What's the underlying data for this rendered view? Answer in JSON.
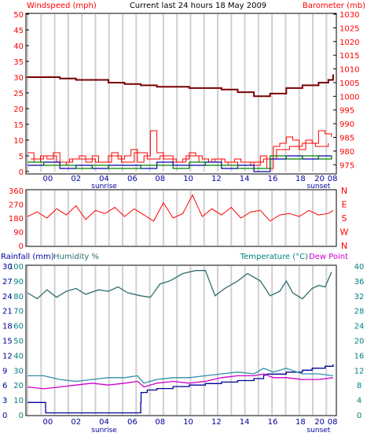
{
  "header": {
    "left_label": "Windspeed (mph)",
    "center_title": "Current last 24 hours 18 May 2009",
    "right_label": "Barometer (mb)"
  },
  "colors": {
    "background": "#ffffff",
    "plot_background": "#ffffff",
    "grid_vertical": "#d0d0d0",
    "axis": "#000000",
    "wind": "#ff0000",
    "wind_avg": "#0000aa",
    "wind_green": "#008000",
    "barometer": "#7a0000",
    "direction": "#ff0000",
    "rain": "#000099",
    "humidity": "#2f6f6f",
    "temperature": "#2f8fa8",
    "dewpoint": "#cc00cc",
    "label_red": "#ff0000",
    "label_blue": "#000099",
    "label_teal": "#008080"
  },
  "chart_data": [
    {
      "type": "line",
      "title": "Current last 24 hours 18 May 2009",
      "ylabel": "Windspeed (mph)",
      "y2label": "Barometer (mb)",
      "xlim": [
        23,
        32.5
      ],
      "ylim": [
        0,
        50
      ],
      "y2lim": [
        972.5,
        1030
      ],
      "grid": "vertical",
      "yticks": [
        0,
        5,
        10,
        15,
        20,
        25,
        30,
        35,
        40,
        45,
        50
      ],
      "y2ticks": [
        975,
        980,
        985,
        990,
        995,
        1000,
        1005,
        1010,
        1015,
        1020,
        1025,
        1030
      ],
      "series": [
        {
          "axis": "left",
          "style": "gust",
          "x": [
            23.0,
            23.2,
            23.4,
            23.6,
            23.8,
            24.0,
            24.2,
            24.4,
            24.6,
            24.8,
            25.0,
            25.2,
            25.4,
            25.6,
            25.8,
            26.0,
            26.2,
            26.4,
            26.6,
            26.8,
            27.0,
            27.2,
            27.4,
            27.6,
            27.8,
            28.0,
            28.2,
            28.4,
            28.6,
            28.8,
            29.0,
            29.2,
            29.4,
            29.6,
            29.8,
            30.0,
            30.2,
            30.4,
            30.6,
            30.8,
            31.0,
            31.2,
            31.4,
            31.6,
            31.8,
            32.0,
            32.2,
            32.4
          ],
          "y": [
            6,
            3,
            5,
            4,
            6,
            2,
            3,
            4,
            5,
            3,
            5,
            3,
            3,
            6,
            4,
            5,
            7,
            3,
            5,
            13,
            6,
            4,
            4,
            3,
            4,
            6,
            5,
            4,
            3,
            4,
            2,
            3,
            4,
            3,
            3,
            2,
            5,
            1,
            8,
            9,
            11,
            10,
            7,
            10,
            9,
            13,
            12,
            11
          ]
        },
        {
          "axis": "left",
          "style": "gust",
          "x": [
            23.1,
            23.5,
            23.9,
            24.3,
            24.7,
            25.1,
            25.5,
            25.9,
            26.3,
            26.7,
            27.1,
            27.5,
            27.9,
            28.3,
            28.7,
            29.1,
            29.5,
            29.9,
            30.3,
            30.7,
            31.1,
            31.5,
            31.9,
            32.3
          ],
          "y": [
            4,
            5,
            3,
            4,
            4,
            3,
            5,
            3,
            6,
            4,
            5,
            3,
            5,
            3,
            4,
            3,
            2,
            3,
            4,
            7,
            8,
            9,
            8,
            9
          ]
        },
        {
          "axis": "left",
          "style": "average",
          "x": [
            23.0,
            23.5,
            24.0,
            24.5,
            25.0,
            25.5,
            26.0,
            26.5,
            27.0,
            27.5,
            28.0,
            28.5,
            29.0,
            29.5,
            30.0,
            30.5,
            31.0,
            31.5,
            32.0,
            32.4
          ],
          "y": [
            2,
            3,
            1,
            2,
            1,
            2,
            2,
            1,
            3,
            2,
            2,
            3,
            1,
            2,
            0,
            4,
            5,
            4,
            5,
            4
          ]
        },
        {
          "axis": "left",
          "style": "average",
          "x": [
            23.0,
            23.5,
            24.0,
            24.5,
            25.0,
            25.5,
            26.0,
            26.5,
            27.0,
            27.5,
            28.0,
            28.5,
            29.0,
            29.5,
            30.0,
            30.5,
            31.0,
            31.5,
            32.0,
            32.4
          ],
          "y": [
            3,
            2,
            2,
            1,
            2,
            1,
            1,
            2,
            2,
            1,
            3,
            2,
            2,
            1,
            1,
            5,
            4,
            5,
            4,
            5
          ]
        },
        {
          "axis": "right",
          "style": "pressure",
          "x": [
            23.0,
            23.8,
            24.0,
            24.5,
            25.0,
            25.5,
            26.0,
            26.5,
            27.0,
            27.5,
            28.0,
            28.5,
            29.0,
            29.5,
            30.0,
            30.25,
            30.5,
            31.0,
            31.5,
            32.0,
            32.3,
            32.45
          ],
          "y": [
            1007,
            1007,
            1006.5,
            1006,
            1006,
            1005,
            1004.5,
            1004,
            1003.5,
            1003.5,
            1003,
            1003,
            1002.5,
            1001.5,
            1000,
            1000,
            1001,
            1003,
            1004,
            1005,
            1006,
            1008
          ]
        }
      ]
    },
    {
      "type": "line",
      "ylabel": "Wind direction",
      "xlim": [
        23,
        32.5
      ],
      "ylim": [
        0,
        360
      ],
      "yticks": [
        0,
        90,
        180,
        270,
        360
      ],
      "y2tick_labels": [
        "N",
        "W",
        "S",
        "E",
        "N"
      ],
      "series": [
        {
          "axis": "left",
          "x": [
            23.0,
            23.3,
            23.6,
            23.9,
            24.2,
            24.5,
            24.8,
            25.1,
            25.4,
            25.7,
            26.0,
            26.3,
            26.6,
            26.9,
            27.2,
            27.5,
            27.8,
            28.1,
            28.4,
            28.7,
            29.0,
            29.3,
            29.6,
            29.9,
            30.2,
            30.5,
            30.8,
            31.1,
            31.4,
            31.7,
            32.0,
            32.3,
            32.45
          ],
          "y": [
            190,
            220,
            180,
            240,
            200,
            260,
            170,
            230,
            210,
            250,
            190,
            240,
            200,
            160,
            280,
            180,
            210,
            330,
            190,
            240,
            200,
            250,
            180,
            220,
            230,
            160,
            200,
            210,
            190,
            230,
            200,
            210,
            230
          ]
        }
      ]
    },
    {
      "type": "line",
      "y1label": "Rainfall (mm)",
      "y2label": "Humidity %",
      "y3label": "Temperature (°C)",
      "y4label": "Dew Point",
      "xlim": [
        23,
        32.5
      ],
      "ylim": [
        0,
        100
      ],
      "y2lim": [
        0,
        40
      ],
      "yticks": [
        0,
        10,
        20,
        30,
        40,
        50,
        60,
        70,
        80,
        90,
        100
      ],
      "y2ticks": [
        0,
        4,
        8,
        12,
        16,
        20,
        24,
        28,
        32,
        36,
        40
      ],
      "rain_ticks": [
        0,
        3,
        6,
        9,
        12,
        15,
        18,
        21,
        24,
        27,
        30
      ],
      "series": [
        {
          "axis": "humidity",
          "x": [
            23.0,
            23.3,
            23.6,
            23.9,
            24.2,
            24.5,
            24.8,
            25.2,
            25.5,
            25.8,
            26.1,
            26.5,
            26.8,
            27.1,
            27.4,
            27.8,
            28.2,
            28.5,
            28.8,
            29.1,
            29.5,
            29.8,
            30.2,
            30.5,
            30.8,
            31.0,
            31.2,
            31.5,
            31.8,
            32.0,
            32.2,
            32.4
          ],
          "y": [
            82,
            78,
            84,
            79,
            83,
            85,
            81,
            84,
            83,
            86,
            82,
            80,
            79,
            88,
            90,
            95,
            97,
            97,
            80,
            85,
            90,
            95,
            90,
            80,
            83,
            90,
            82,
            78,
            85,
            87,
            86,
            96
          ]
        },
        {
          "axis": "rain",
          "x": [
            23.0,
            23.55,
            23.56,
            26.4,
            26.5,
            26.51,
            26.7,
            27.0,
            27.5,
            28.0,
            28.5,
            29.0,
            29.5,
            30.0,
            30.3,
            30.4,
            31.0,
            31.5,
            31.8,
            32.2,
            32.45
          ],
          "y": [
            2.5,
            2.5,
            0.4,
            0.4,
            2.5,
            4.5,
            5.0,
            5.3,
            5.7,
            6.0,
            6.3,
            6.6,
            6.9,
            7.3,
            8.0,
            8.2,
            8.6,
            9.0,
            9.4,
            9.8,
            10.2
          ]
        },
        {
          "axis": "temperature",
          "x": [
            23.0,
            23.5,
            24.0,
            24.5,
            25.0,
            25.5,
            26.0,
            26.4,
            26.6,
            27.0,
            27.5,
            28.0,
            28.5,
            29.0,
            29.5,
            30.0,
            30.3,
            30.6,
            31.0,
            31.5,
            32.0,
            32.45
          ],
          "y": [
            10.5,
            10.5,
            9.5,
            9.0,
            9.5,
            10.0,
            10.0,
            10.5,
            8.5,
            9.5,
            10.0,
            10.0,
            10.5,
            11.0,
            11.5,
            11.0,
            12.5,
            11.5,
            12.5,
            11.0,
            11.0,
            10.5
          ]
        },
        {
          "axis": "temperature",
          "x": [
            23.0,
            23.5,
            24.0,
            24.5,
            25.0,
            25.5,
            26.0,
            26.4,
            26.6,
            27.0,
            27.5,
            28.0,
            28.5,
            29.0,
            29.5,
            30.0,
            30.3,
            30.6,
            31.0,
            31.5,
            32.0,
            32.45
          ],
          "y": [
            7.5,
            7.0,
            7.5,
            8.0,
            8.5,
            8.0,
            8.5,
            9.0,
            7.5,
            8.5,
            9.0,
            8.5,
            9.0,
            10.0,
            10.5,
            10.5,
            11.0,
            10.0,
            10.0,
            9.5,
            9.5,
            10.0
          ]
        }
      ]
    }
  ],
  "hour_labels": [
    "00",
    "02",
    "04",
    "06",
    "08",
    "10",
    "12",
    "14",
    "16",
    "18",
    "20",
    "08"
  ],
  "sunrise_label": "sunrise",
  "sunset_label": "sunset",
  "panel3": {
    "rain_label": "Rainfall (mm)",
    "humidity_label": "Humidity %",
    "temp_label": "Temperature (°C)",
    "dew_label": "Dew Point"
  }
}
